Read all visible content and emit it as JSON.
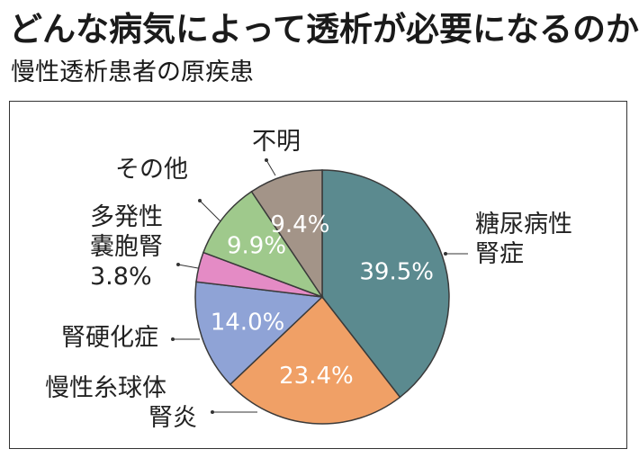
{
  "title": "どんな病気によって透析が必要になるのか",
  "subtitle": "慢性透析患者の原疾患",
  "chart_data": {
    "type": "pie",
    "unit": "%",
    "slices": [
      {
        "label_lines": [
          "糖尿病性",
          "腎症"
        ],
        "value": 39.5,
        "value_label": "39.5%",
        "color": "#5b8a8f"
      },
      {
        "label_lines": [
          "慢性糸球体",
          "腎炎"
        ],
        "value": 23.4,
        "value_label": "23.4%",
        "color": "#f0a066"
      },
      {
        "label_lines": [
          "腎硬化症"
        ],
        "value": 14.0,
        "value_label": "14.0%",
        "color": "#8fa3d6"
      },
      {
        "label_lines": [
          "多発性",
          "嚢胞腎",
          "3.8%"
        ],
        "value": 3.8,
        "value_label": "",
        "color": "#e48bc5"
      },
      {
        "label_lines": [
          "その他"
        ],
        "value": 9.9,
        "value_label": "9.9%",
        "color": "#9fc98c"
      },
      {
        "label_lines": [
          "不明"
        ],
        "value": 9.4,
        "value_label": "9.4%",
        "color": "#a39488"
      }
    ]
  }
}
